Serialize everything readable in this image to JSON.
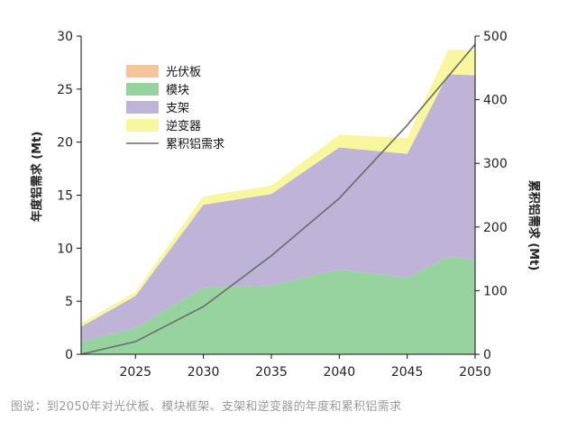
{
  "caption": "图说：到2050年对光伏板、模块框架、支架和逆变器的年度和累积铝需求",
  "chart_data": {
    "type": "area",
    "stacked": true,
    "x": [
      2021,
      2025,
      2030,
      2035,
      2040,
      2045,
      2048,
      2050
    ],
    "x_ticks": [
      "2025",
      "2030",
      "2035",
      "2040",
      "2045",
      "2050"
    ],
    "xlim": [
      2021,
      2050
    ],
    "ylabel_left": "年度铝需求 (Mt)",
    "ylim_left": [
      0,
      30
    ],
    "yticks_left": [
      "0",
      "5",
      "10",
      "15",
      "20",
      "25",
      "30"
    ],
    "ylabel_right": "累积铝需求 (Mt)",
    "ylim_right": [
      0,
      500
    ],
    "yticks_right": [
      "0",
      "100",
      "200",
      "300",
      "400",
      "500"
    ],
    "legend_position": "top-left",
    "series": [
      {
        "name": "光伏板",
        "color": "#f5c49a",
        "values": [
          0,
          0,
          0,
          0,
          0,
          0,
          0,
          0
        ]
      },
      {
        "name": "模块",
        "color": "#97d39e",
        "values": [
          1.2,
          2.5,
          6.3,
          6.5,
          8.0,
          7.2,
          9.2,
          8.9
        ]
      },
      {
        "name": "支架",
        "color": "#bfb3d8",
        "values": [
          1.4,
          3.0,
          7.8,
          8.6,
          11.5,
          11.7,
          17.2,
          17.4
        ]
      },
      {
        "name": "逆变器",
        "color": "#f8f79d",
        "values": [
          0.3,
          0.4,
          0.8,
          0.8,
          1.2,
          1.5,
          2.3,
          2.4
        ]
      }
    ],
    "cumulative": {
      "name": "累积铝需求",
      "color": "#6b6b6b",
      "axis": "right",
      "x": [
        2021,
        2025,
        2030,
        2035,
        2040,
        2045,
        2050
      ],
      "values": [
        0,
        20,
        75,
        155,
        245,
        360,
        487
      ]
    }
  }
}
